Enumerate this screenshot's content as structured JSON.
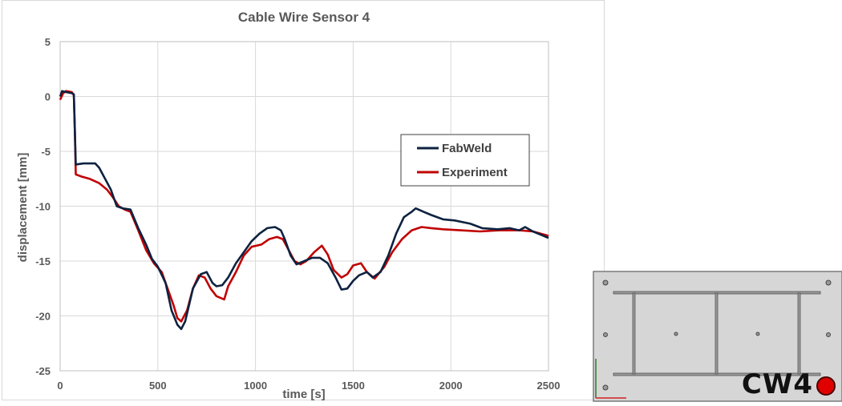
{
  "chart_data": {
    "type": "line",
    "title": "Cable Wire Sensor 4",
    "xlabel": "time [s]",
    "ylabel": "displacement [mm]",
    "xlim": [
      0,
      2500
    ],
    "ylim": [
      -25,
      5
    ],
    "xticks": [
      0,
      500,
      1000,
      1500,
      2000,
      2500
    ],
    "yticks": [
      5,
      0,
      -5,
      -10,
      -15,
      -20,
      -25
    ],
    "grid": true,
    "legend_position": "center-right",
    "series": [
      {
        "name": "FabWeld",
        "color": "#0d2240",
        "points": [
          [
            0,
            0
          ],
          [
            10,
            0.5
          ],
          [
            30,
            0.4
          ],
          [
            60,
            0.3
          ],
          [
            70,
            0.2
          ],
          [
            75,
            -3
          ],
          [
            80,
            -6.2
          ],
          [
            120,
            -6.1
          ],
          [
            180,
            -6.1
          ],
          [
            200,
            -6.5
          ],
          [
            230,
            -7.5
          ],
          [
            260,
            -8.5
          ],
          [
            290,
            -10
          ],
          [
            320,
            -10.2
          ],
          [
            360,
            -10.3
          ],
          [
            400,
            -12
          ],
          [
            440,
            -13.5
          ],
          [
            470,
            -14.8
          ],
          [
            500,
            -15.5
          ],
          [
            540,
            -17
          ],
          [
            570,
            -19.5
          ],
          [
            600,
            -20.8
          ],
          [
            620,
            -21.2
          ],
          [
            640,
            -20.5
          ],
          [
            660,
            -19
          ],
          [
            680,
            -17.5
          ],
          [
            720,
            -16.2
          ],
          [
            750,
            -16
          ],
          [
            780,
            -17
          ],
          [
            800,
            -17.3
          ],
          [
            830,
            -17.2
          ],
          [
            860,
            -16.5
          ],
          [
            900,
            -15.2
          ],
          [
            940,
            -14.2
          ],
          [
            980,
            -13.2
          ],
          [
            1020,
            -12.5
          ],
          [
            1060,
            -12
          ],
          [
            1100,
            -11.9
          ],
          [
            1130,
            -12.2
          ],
          [
            1150,
            -13
          ],
          [
            1180,
            -14.5
          ],
          [
            1210,
            -15.3
          ],
          [
            1250,
            -15
          ],
          [
            1290,
            -14.7
          ],
          [
            1330,
            -14.7
          ],
          [
            1370,
            -15.2
          ],
          [
            1410,
            -16.5
          ],
          [
            1440,
            -17.6
          ],
          [
            1470,
            -17.5
          ],
          [
            1500,
            -16.8
          ],
          [
            1530,
            -16.3
          ],
          [
            1570,
            -16
          ],
          [
            1600,
            -16.5
          ],
          [
            1640,
            -16
          ],
          [
            1680,
            -14.5
          ],
          [
            1720,
            -12.5
          ],
          [
            1760,
            -11
          ],
          [
            1800,
            -10.5
          ],
          [
            1820,
            -10.2
          ],
          [
            1860,
            -10.5
          ],
          [
            1900,
            -10.8
          ],
          [
            1960,
            -11.2
          ],
          [
            2020,
            -11.3
          ],
          [
            2100,
            -11.6
          ],
          [
            2160,
            -12
          ],
          [
            2240,
            -12.1
          ],
          [
            2300,
            -12
          ],
          [
            2350,
            -12.2
          ],
          [
            2380,
            -11.9
          ],
          [
            2420,
            -12.3
          ],
          [
            2460,
            -12.6
          ],
          [
            2500,
            -12.9
          ]
        ]
      },
      {
        "name": "Experiment",
        "color": "#c00000",
        "points": [
          [
            0,
            -0.3
          ],
          [
            15,
            0.3
          ],
          [
            30,
            0.5
          ],
          [
            60,
            0.4
          ],
          [
            70,
            0.1
          ],
          [
            75,
            -3
          ],
          [
            80,
            -7.1
          ],
          [
            110,
            -7.3
          ],
          [
            150,
            -7.5
          ],
          [
            200,
            -7.9
          ],
          [
            240,
            -8.5
          ],
          [
            270,
            -9.2
          ],
          [
            300,
            -10
          ],
          [
            330,
            -10.3
          ],
          [
            360,
            -10.5
          ],
          [
            400,
            -12.2
          ],
          [
            440,
            -14
          ],
          [
            480,
            -15.2
          ],
          [
            520,
            -16
          ],
          [
            550,
            -17.5
          ],
          [
            580,
            -19
          ],
          [
            600,
            -20.2
          ],
          [
            620,
            -20.5
          ],
          [
            650,
            -19.5
          ],
          [
            680,
            -17.5
          ],
          [
            710,
            -16.3
          ],
          [
            740,
            -16.5
          ],
          [
            770,
            -17.5
          ],
          [
            800,
            -18.2
          ],
          [
            840,
            -18.5
          ],
          [
            860,
            -17.3
          ],
          [
            900,
            -16
          ],
          [
            940,
            -14.5
          ],
          [
            980,
            -13.7
          ],
          [
            1030,
            -13.5
          ],
          [
            1070,
            -13
          ],
          [
            1110,
            -12.8
          ],
          [
            1140,
            -13
          ],
          [
            1170,
            -14
          ],
          [
            1200,
            -15
          ],
          [
            1230,
            -15.3
          ],
          [
            1260,
            -15
          ],
          [
            1300,
            -14.2
          ],
          [
            1340,
            -13.6
          ],
          [
            1370,
            -14.4
          ],
          [
            1400,
            -15.8
          ],
          [
            1440,
            -16.5
          ],
          [
            1470,
            -16.2
          ],
          [
            1500,
            -15.4
          ],
          [
            1540,
            -15.2
          ],
          [
            1570,
            -16
          ],
          [
            1610,
            -16.6
          ],
          [
            1660,
            -15.5
          ],
          [
            1700,
            -14.2
          ],
          [
            1750,
            -13
          ],
          [
            1800,
            -12.2
          ],
          [
            1850,
            -11.9
          ],
          [
            1900,
            -12
          ],
          [
            1960,
            -12.1
          ],
          [
            2050,
            -12.2
          ],
          [
            2150,
            -12.3
          ],
          [
            2250,
            -12.2
          ],
          [
            2350,
            -12.2
          ],
          [
            2420,
            -12.3
          ],
          [
            2480,
            -12.6
          ],
          [
            2500,
            -12.7
          ]
        ]
      }
    ]
  },
  "sensor_panel": {
    "label": "CW4"
  }
}
